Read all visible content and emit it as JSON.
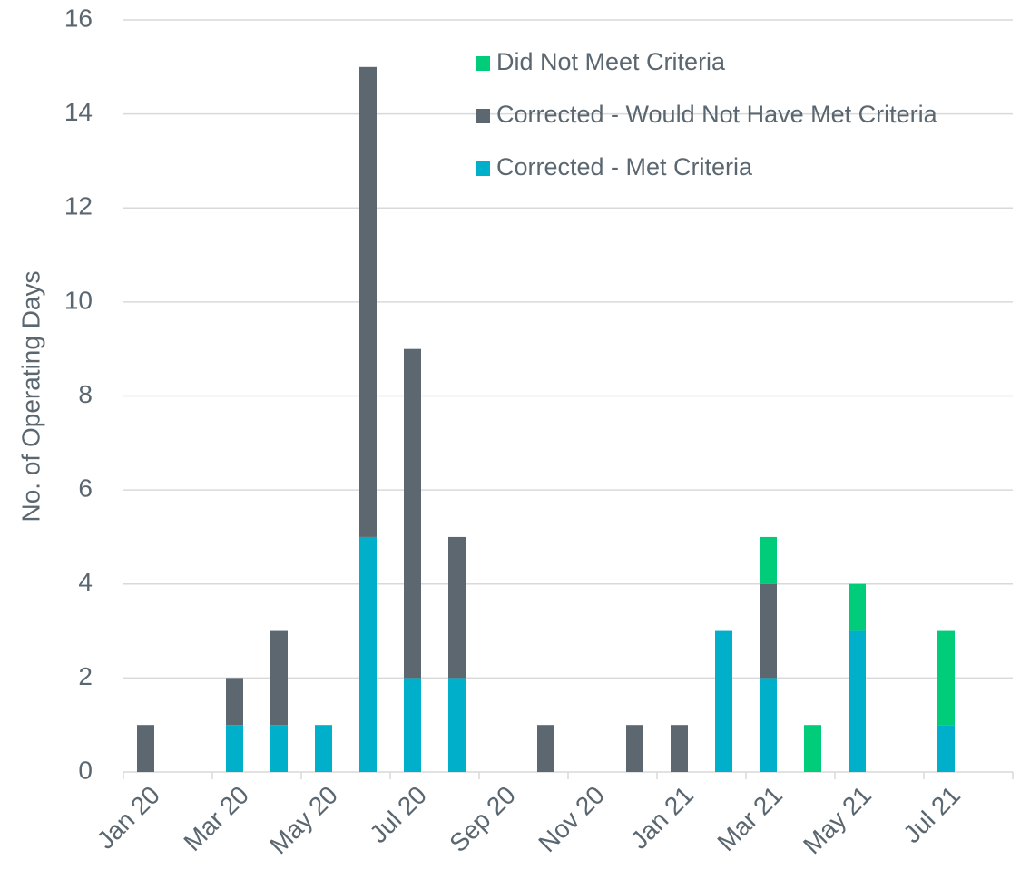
{
  "chart_data": {
    "type": "stacked_bar",
    "y_label": "No. of Operating Days",
    "categories": [
      "Jan 20",
      null,
      "Mar 20",
      null,
      "May 20",
      null,
      "Jul 20",
      null,
      "Sep 20",
      null,
      "Nov 20",
      null,
      "Jan 21",
      null,
      "Mar 21",
      null,
      "May 21",
      null,
      "Jul 21",
      null
    ],
    "series": [
      {
        "name": "Corrected - Met Criteria",
        "color": "#00afc9",
        "values": [
          0,
          0,
          1,
          1,
          1,
          5,
          2,
          2,
          0,
          0,
          0,
          0,
          0,
          3,
          2,
          0,
          3,
          0,
          1,
          0
        ]
      },
      {
        "name": "Corrected - Would Not Have Met Criteria",
        "color": "#5c6770",
        "values": [
          1,
          0,
          1,
          2,
          0,
          10,
          7,
          3,
          0,
          1,
          0,
          1,
          1,
          0,
          2,
          0,
          0,
          0,
          0,
          0
        ]
      },
      {
        "name": "Did Not Meet Criteria",
        "color": "#00cc7a",
        "values": [
          0,
          0,
          0,
          0,
          0,
          0,
          0,
          0,
          0,
          0,
          0,
          0,
          0,
          0,
          1,
          1,
          1,
          0,
          2,
          0
        ]
      }
    ],
    "ylim": [
      0,
      16
    ],
    "yticks": [
      0,
      2,
      4,
      6,
      8,
      10,
      12,
      14,
      16
    ],
    "grid": true,
    "legend": "upper right"
  }
}
